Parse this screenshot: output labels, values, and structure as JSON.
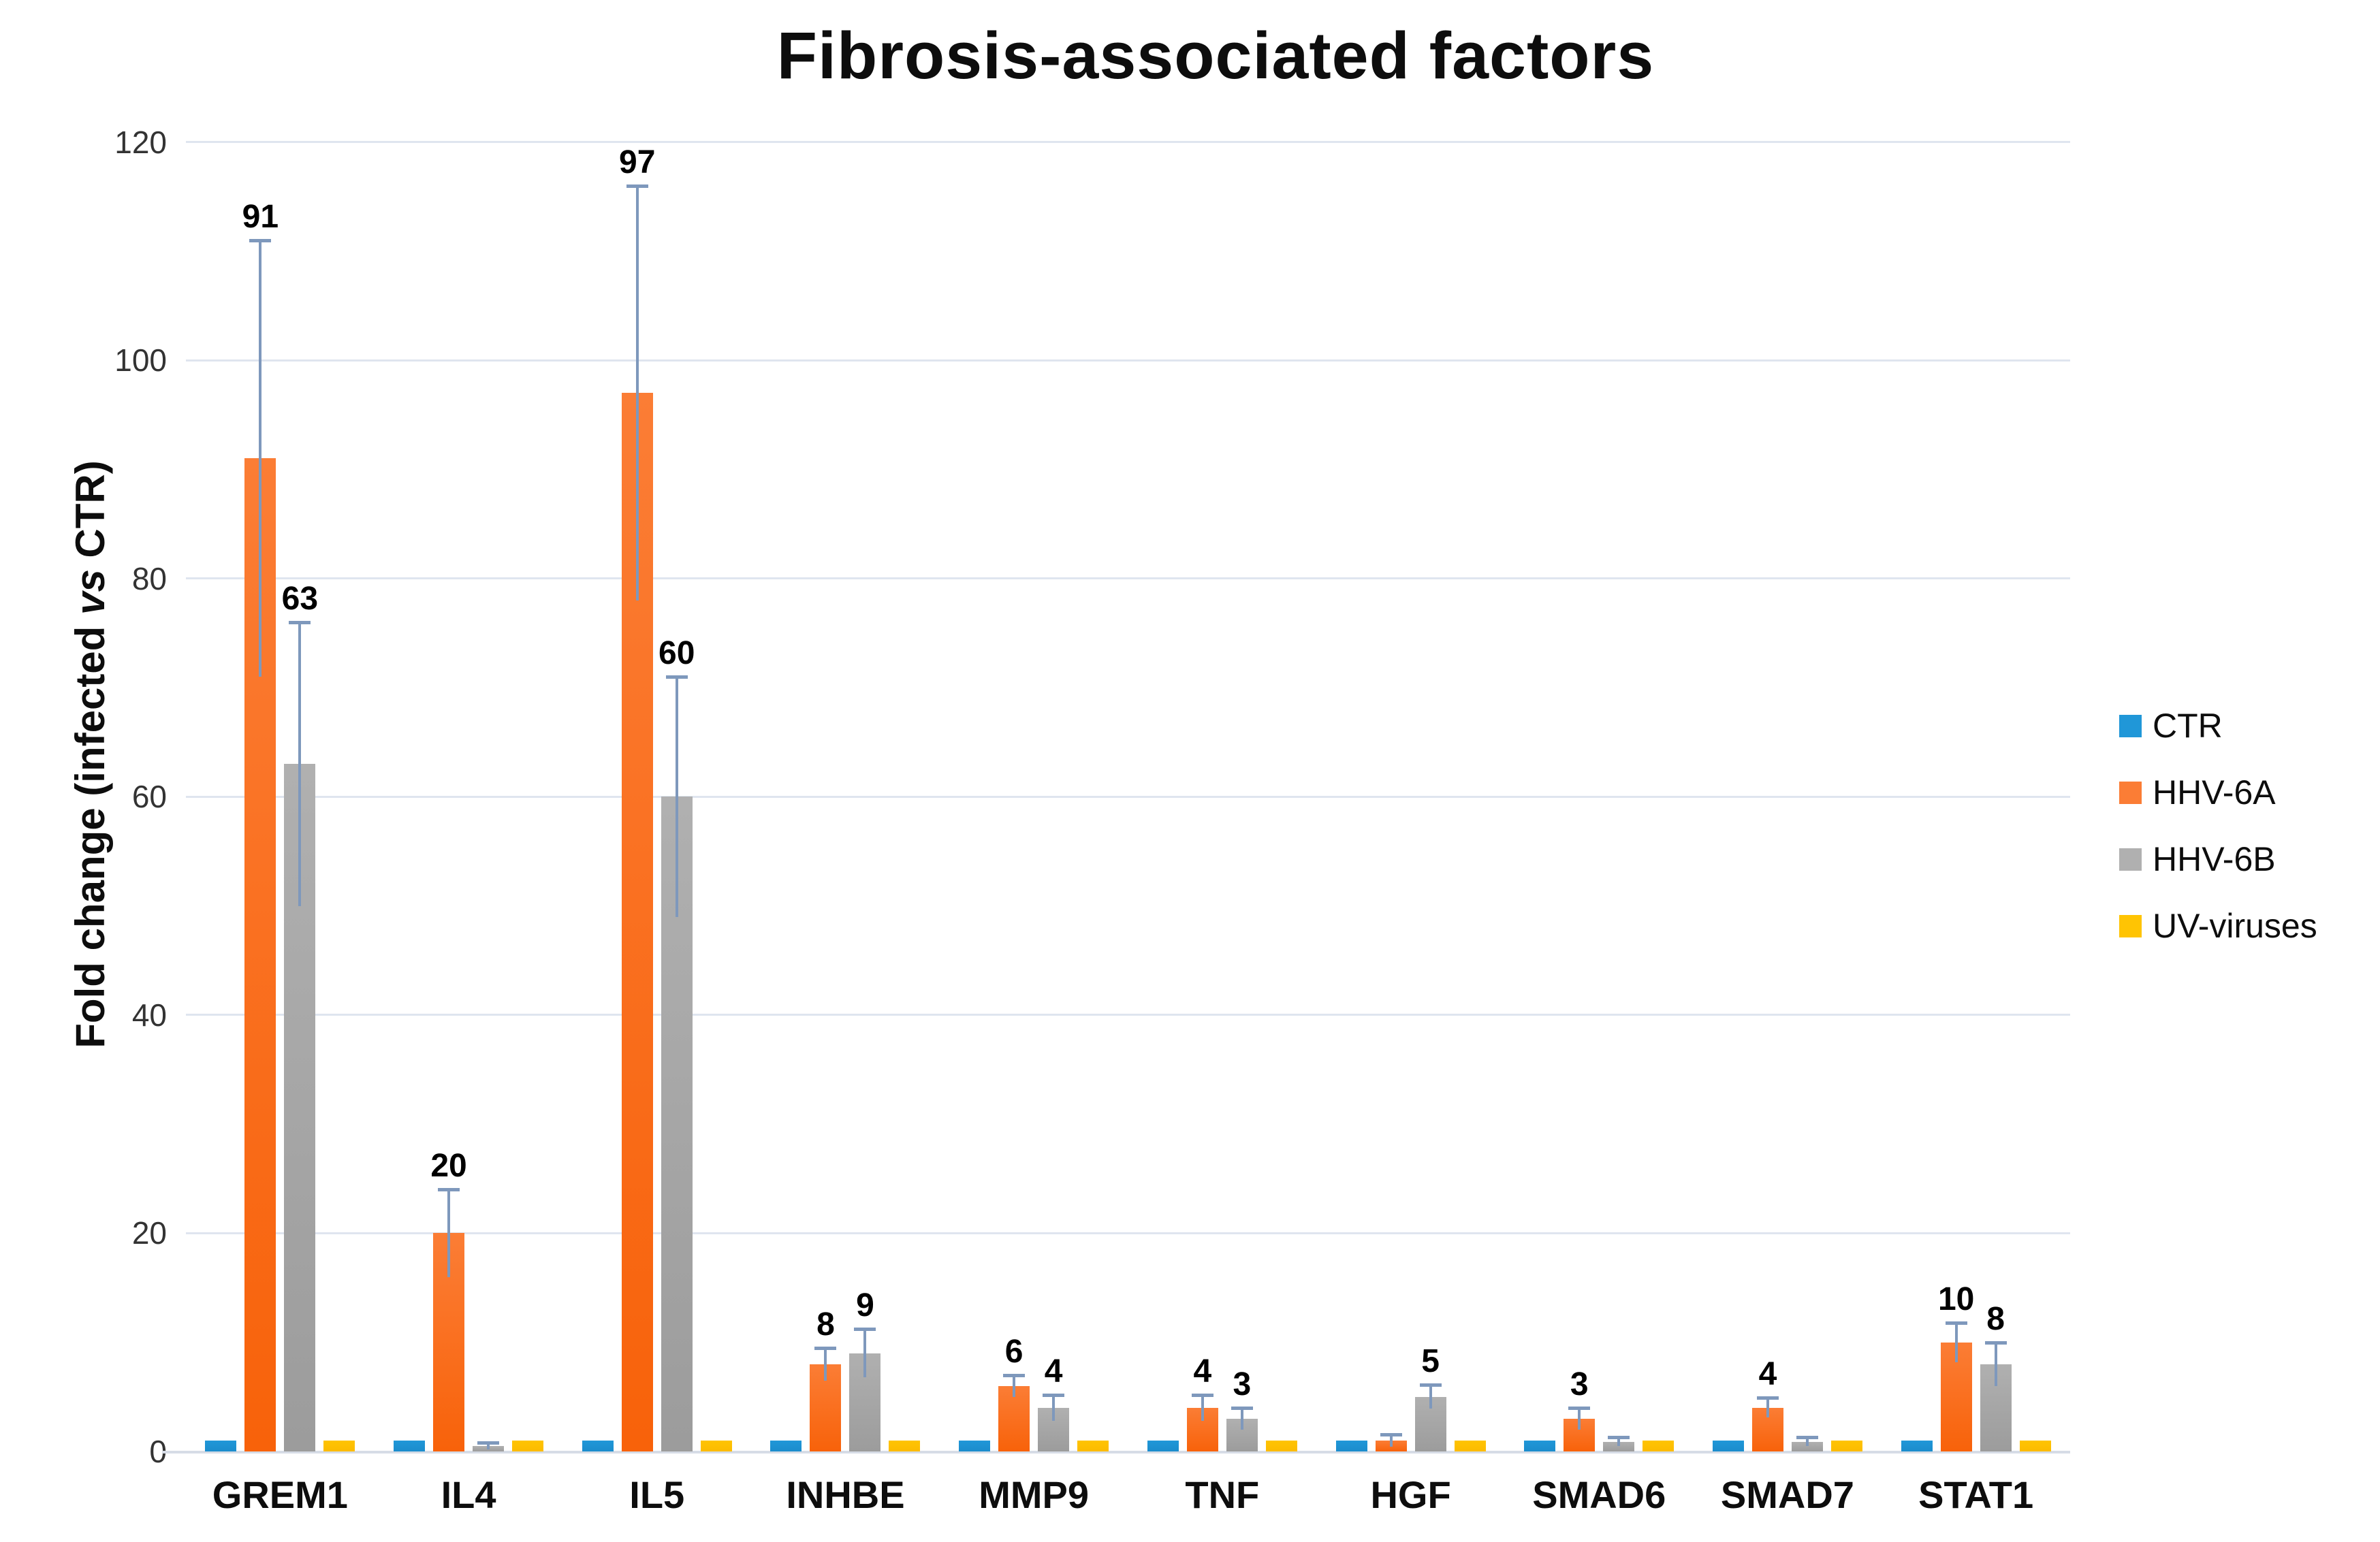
{
  "title": "Fibrosis-associated factors",
  "y_axis": {
    "label_prefix": "Fold change (infected ",
    "label_vs": "vs",
    "label_suffix": " CTR)"
  },
  "chart_data": {
    "type": "bar",
    "title": "Fibrosis-associated factors",
    "ylabel": "Fold change (infected vs CTR)",
    "ylim": [
      0,
      120
    ],
    "yticks": [
      0,
      20,
      40,
      60,
      80,
      100,
      120
    ],
    "grid": true,
    "legend_position": "right",
    "error_bar_color": "#7e98bc",
    "categories": [
      "GREM1",
      "IL4",
      "IL5",
      "INHBE",
      "MMP9",
      "TNF",
      "HGF",
      "SMAD6",
      "SMAD7",
      "STAT1"
    ],
    "series": [
      {
        "name": "CTR",
        "color": "#2097d8",
        "color_bottom": "#1b8ccc",
        "values": [
          1,
          1,
          1,
          1,
          1,
          1,
          1,
          1,
          1,
          1
        ],
        "errors": [
          0,
          0,
          0,
          0,
          0,
          0,
          0,
          0,
          0,
          0
        ],
        "labels": [
          "",
          "",
          "",
          "",
          "",
          "",
          "",
          "",
          "",
          ""
        ]
      },
      {
        "name": "HHV-6A",
        "color": "#fb7d35",
        "color_bottom": "#f8620a",
        "values": [
          91,
          20,
          97,
          8,
          6,
          4,
          1,
          3,
          4,
          10
        ],
        "errors": [
          20,
          4,
          19,
          1.5,
          1.0,
          1.2,
          0.55,
          1.0,
          0.9,
          1.8
        ],
        "labels": [
          "91",
          "20",
          "97",
          "8",
          "6",
          "4",
          "",
          "3",
          "4",
          "10"
        ]
      },
      {
        "name": "HHV-6B",
        "color": "#b0b0b0",
        "color_bottom": "#9c9c9c",
        "values": [
          63,
          0.5,
          60,
          9,
          4,
          3,
          5,
          0.9,
          0.9,
          8
        ],
        "errors": [
          13,
          0.3,
          11,
          2.2,
          1.2,
          1.0,
          1.1,
          0.4,
          0.4,
          2.0
        ],
        "labels": [
          "63",
          "",
          "60",
          "9",
          "4",
          "3",
          "5",
          "",
          "",
          "8"
        ]
      },
      {
        "name": "UV-viruses",
        "color": "#ffc403",
        "color_bottom": "#fcbb00",
        "values": [
          1,
          1,
          1,
          1,
          1,
          1,
          1,
          1,
          1,
          1
        ],
        "errors": [
          0,
          0,
          0,
          0,
          0,
          0,
          0,
          0,
          0,
          0
        ],
        "labels": [
          "",
          "",
          "",
          "",
          "",
          "",
          "",
          "",
          "",
          ""
        ]
      }
    ]
  }
}
